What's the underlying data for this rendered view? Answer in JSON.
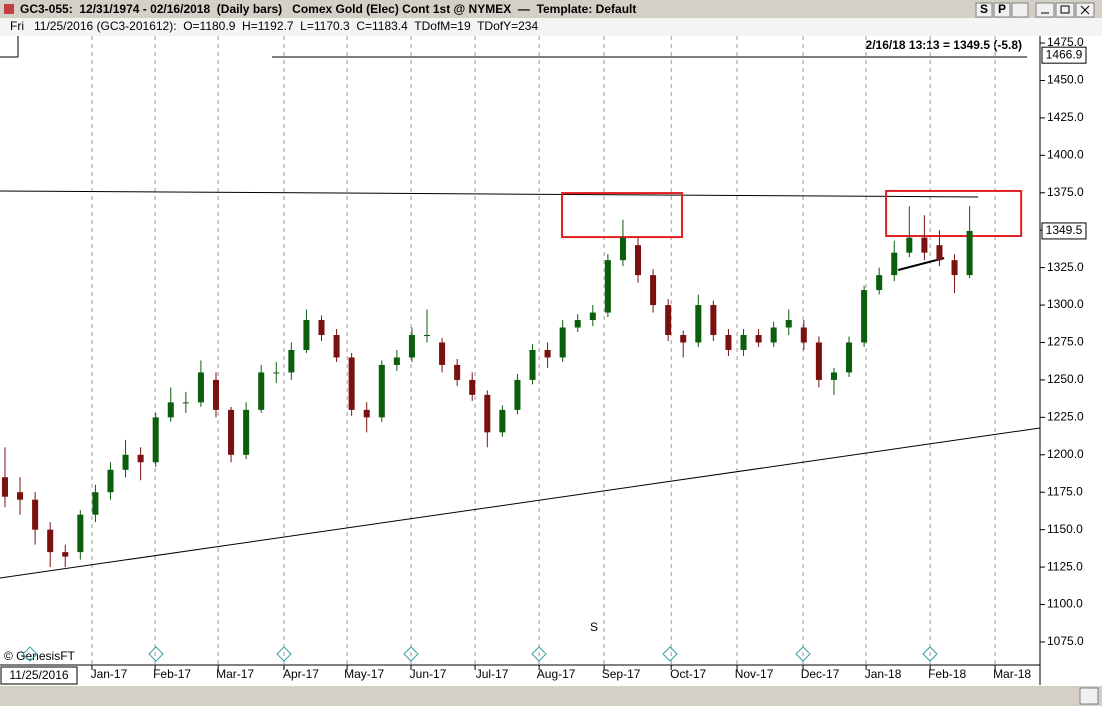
{
  "chart_data": {
    "type": "candlestick",
    "title": "GC3-055:  12/31/1974 - 02/16/2018  (Daily bars)   Comex Gold (Elec) Cont 1st @ NYMEX  —  Template: Default",
    "buttons": [
      "S",
      "P"
    ],
    "day": "Fri",
    "subtitle": "11/25/2016 (GC3-201612):  O=1180.9  H=1192.7  L=1170.3  C=1183.4  TDofM=19  TDofY=234",
    "last_quote": "2/16/18 13:13 = 1349.5 (-5.8)",
    "start_date": "11/25/2016",
    "watermark": "© GenesisFT",
    "mark_text": "S",
    "up_color": "#0b5e0b",
    "down_color": "#7a1010",
    "x": [
      0,
      1,
      2,
      3,
      4,
      5,
      6,
      7,
      8,
      9,
      10,
      11,
      12,
      13,
      14,
      15,
      16,
      17,
      18,
      19,
      20,
      21,
      22,
      23,
      24,
      25,
      26,
      27,
      28,
      29,
      30,
      31,
      32,
      33,
      34,
      35,
      36,
      37,
      38,
      39,
      40,
      41,
      42,
      43,
      44,
      45,
      46,
      47,
      48,
      49,
      50,
      51,
      52,
      53,
      54,
      55,
      56,
      57,
      58,
      59,
      60,
      61,
      62,
      63,
      64
    ],
    "open": [
      1185,
      1175,
      1170,
      1150,
      1135,
      1135,
      1160,
      1175,
      1190,
      1200,
      1195,
      1225,
      1235,
      1235,
      1250,
      1230,
      1200,
      1230,
      1255,
      1255,
      1270,
      1290,
      1280,
      1265,
      1230,
      1225,
      1260,
      1265,
      1280,
      1275,
      1260,
      1250,
      1240,
      1215,
      1230,
      1250,
      1270,
      1265,
      1285,
      1290,
      1295,
      1330,
      1340,
      1320,
      1300,
      1280,
      1275,
      1300,
      1280,
      1270,
      1280,
      1275,
      1285,
      1285,
      1275,
      1250,
      1255,
      1275,
      1310,
      1320,
      1335,
      1345,
      1340,
      1330,
      1320
    ],
    "high": [
      1205,
      1185,
      1175,
      1155,
      1140,
      1163,
      1180,
      1195,
      1210,
      1205,
      1228,
      1245,
      1242,
      1263,
      1255,
      1232,
      1235,
      1260,
      1262,
      1275,
      1297,
      1293,
      1284,
      1268,
      1235,
      1263,
      1270,
      1285,
      1297,
      1278,
      1264,
      1255,
      1243,
      1233,
      1254,
      1274,
      1275,
      1290,
      1294,
      1300,
      1334,
      1357,
      1345,
      1324,
      1304,
      1283,
      1307,
      1303,
      1284,
      1284,
      1284,
      1289,
      1297,
      1290,
      1279,
      1258,
      1279,
      1313,
      1325,
      1343,
      1366,
      1360,
      1350,
      1334,
      1366
    ],
    "low": [
      1165,
      1160,
      1140,
      1125,
      1125,
      1130,
      1155,
      1170,
      1185,
      1183,
      1192,
      1222,
      1228,
      1232,
      1225,
      1195,
      1197,
      1228,
      1248,
      1250,
      1268,
      1276,
      1262,
      1226,
      1215,
      1222,
      1256,
      1262,
      1275,
      1255,
      1246,
      1236,
      1205,
      1212,
      1227,
      1247,
      1258,
      1262,
      1282,
      1286,
      1292,
      1326,
      1315,
      1295,
      1276,
      1265,
      1272,
      1276,
      1266,
      1266,
      1272,
      1272,
      1280,
      1270,
      1245,
      1240,
      1252,
      1272,
      1307,
      1316,
      1332,
      1330,
      1326,
      1308,
      1318
    ],
    "close": [
      1172,
      1170,
      1150,
      1135,
      1132,
      1160,
      1175,
      1190,
      1200,
      1195,
      1225,
      1235,
      1235,
      1255,
      1230,
      1200,
      1230,
      1255,
      1255,
      1270,
      1290,
      1280,
      1265,
      1230,
      1225,
      1260,
      1265,
      1280,
      1280,
      1260,
      1250,
      1240,
      1215,
      1230,
      1250,
      1270,
      1265,
      1285,
      1290,
      1295,
      1330,
      1345,
      1320,
      1300,
      1280,
      1275,
      1300,
      1280,
      1270,
      1280,
      1275,
      1285,
      1290,
      1275,
      1250,
      1255,
      1275,
      1310,
      1320,
      1335,
      1345,
      1335,
      1330,
      1320,
      1349.5
    ],
    "xlim": [
      -0.33,
      68.67
    ],
    "xticks": [
      {
        "value": 5.77,
        "label": "Jan-17"
      },
      {
        "value": 9.96,
        "label": "Feb-17"
      },
      {
        "value": 14.14,
        "label": "Mar-17"
      },
      {
        "value": 18.51,
        "label": "Apr-17"
      },
      {
        "value": 22.7,
        "label": "May-17"
      },
      {
        "value": 26.94,
        "label": "Jun-17"
      },
      {
        "value": 31.19,
        "label": "Jul-17"
      },
      {
        "value": 35.44,
        "label": "Aug-17"
      },
      {
        "value": 39.75,
        "label": "Sep-17"
      },
      {
        "value": 44.2,
        "label": "Oct-17"
      },
      {
        "value": 48.57,
        "label": "Nov-17"
      },
      {
        "value": 52.95,
        "label": "Dec-17"
      },
      {
        "value": 57.13,
        "label": "Jan-18"
      },
      {
        "value": 61.38,
        "label": "Feb-18"
      },
      {
        "value": 65.69,
        "label": "Mar-18"
      }
    ],
    "ylim": [
      1059.6,
      1479.7
    ],
    "yticks": [
      {
        "value": 1075,
        "label": "1075.0"
      },
      {
        "value": 1100,
        "label": "1100.0"
      },
      {
        "value": 1125,
        "label": "1125.0"
      },
      {
        "value": 1150,
        "label": "1150.0"
      },
      {
        "value": 1175,
        "label": "1175.0"
      },
      {
        "value": 1200,
        "label": "1200.0"
      },
      {
        "value": 1225,
        "label": "1225.0"
      },
      {
        "value": 1250,
        "label": "1250.0"
      },
      {
        "value": 1275,
        "label": "1275.0"
      },
      {
        "value": 1300,
        "label": "1300.0"
      },
      {
        "value": 1325,
        "label": "1325.0"
      },
      {
        "value": 1350,
        "label": "1350.0"
      },
      {
        "value": 1375,
        "label": "1375.0"
      },
      {
        "value": 1400,
        "label": "1400.0"
      },
      {
        "value": 1425,
        "label": "1425.0"
      },
      {
        "value": 1450,
        "label": "1450.0"
      },
      {
        "value": 1475,
        "label": "1475.0"
      }
    ],
    "price_markers": [
      1466.9,
      1349.5
    ],
    "lines": [
      {
        "x": [
          -0.33,
          64.57
        ],
        "y": [
          1376.2,
          1372.2
        ],
        "color": "#000000"
      },
      {
        "x": [
          -0.33,
          68.67
        ],
        "y": [
          1117.7,
          1217.9
        ],
        "color": "#000000"
      },
      {
        "x": [
          59.26,
          62.31
        ],
        "y": [
          1323.4,
          1331.4
        ],
        "color": "#000000"
      },
      {
        "x": [
          17.72,
          67.82
        ],
        "y": [
          1465.7,
          1465.7
        ],
        "color": "#000000"
      }
    ],
    "rectangles": [
      {
        "x": [
          36.96,
          44.92
        ],
        "y": [
          1374.8,
          1345.4
        ],
        "color": "#e02020"
      },
      {
        "x": [
          58.46,
          67.42
        ],
        "y": [
          1376.2,
          1346.1
        ],
        "color": "#e02020"
      }
    ]
  }
}
